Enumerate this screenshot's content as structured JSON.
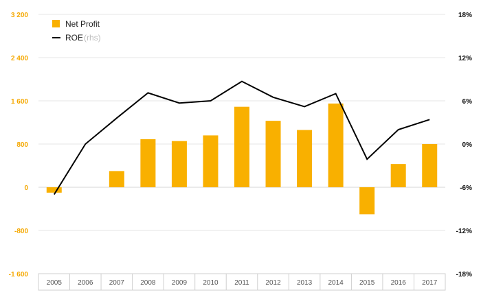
{
  "chart_data": {
    "type": "bar",
    "categories": [
      "2005",
      "2006",
      "2007",
      "2008",
      "2009",
      "2010",
      "2011",
      "2012",
      "2013",
      "2014",
      "2015",
      "2016",
      "2017"
    ],
    "series": [
      {
        "name": "Net Profit",
        "type": "bar",
        "axis": "left",
        "color": "#f9b000",
        "values": [
          -100,
          0,
          300,
          890,
          855,
          960,
          1490,
          1230,
          1060,
          1550,
          -500,
          430,
          800
        ]
      },
      {
        "name": "ROE",
        "axis_note": "(rhs)",
        "type": "line",
        "axis": "right",
        "color": "#000000",
        "values": [
          -7.0,
          0.0,
          3.6,
          7.1,
          5.7,
          6.0,
          8.7,
          6.5,
          5.2,
          7.0,
          -2.1,
          2.0,
          3.4
        ]
      }
    ],
    "y_left": {
      "ylim": [
        -1600,
        3200
      ],
      "ticks": [
        -1600,
        -800,
        0,
        800,
        1600,
        2400,
        3200
      ],
      "tick_labels": [
        "-1 600",
        "-800",
        "0",
        "800",
        "1 600",
        "2 400",
        "3 200"
      ]
    },
    "y_right": {
      "ylim": [
        -18,
        18
      ],
      "ticks": [
        -18,
        -12,
        -6,
        0,
        6,
        12,
        18
      ],
      "tick_labels": [
        "-18%",
        "-12%",
        "-6%",
        "0%",
        "6%",
        "12%",
        "18%"
      ]
    },
    "grid": true,
    "legend_position": "top-left",
    "legend": {
      "bar_label": "Net Profit",
      "line_label": "ROE",
      "line_note": "(rhs)"
    }
  }
}
